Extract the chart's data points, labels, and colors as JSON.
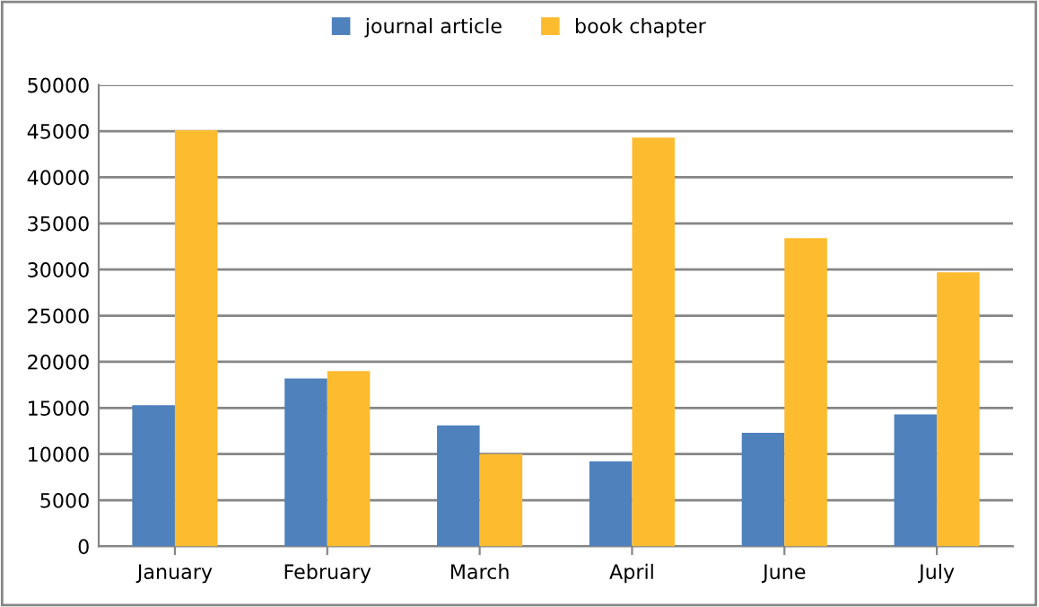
{
  "chart_data": {
    "type": "bar",
    "categories": [
      "January",
      "February",
      "March",
      "April",
      "June",
      "July"
    ],
    "series": [
      {
        "name": "journal article",
        "color": "#4f81bd",
        "values": [
          15300,
          18200,
          13100,
          9200,
          12300,
          14300
        ]
      },
      {
        "name": "book chapter",
        "color": "#fdbb2f",
        "values": [
          45100,
          19000,
          10000,
          44300,
          33400,
          29700
        ]
      }
    ],
    "ylim": [
      0,
      50000
    ],
    "yticks": [
      0,
      5000,
      10000,
      15000,
      20000,
      25000,
      30000,
      35000,
      40000,
      45000,
      50000
    ],
    "grid": "y",
    "legend": "top"
  }
}
